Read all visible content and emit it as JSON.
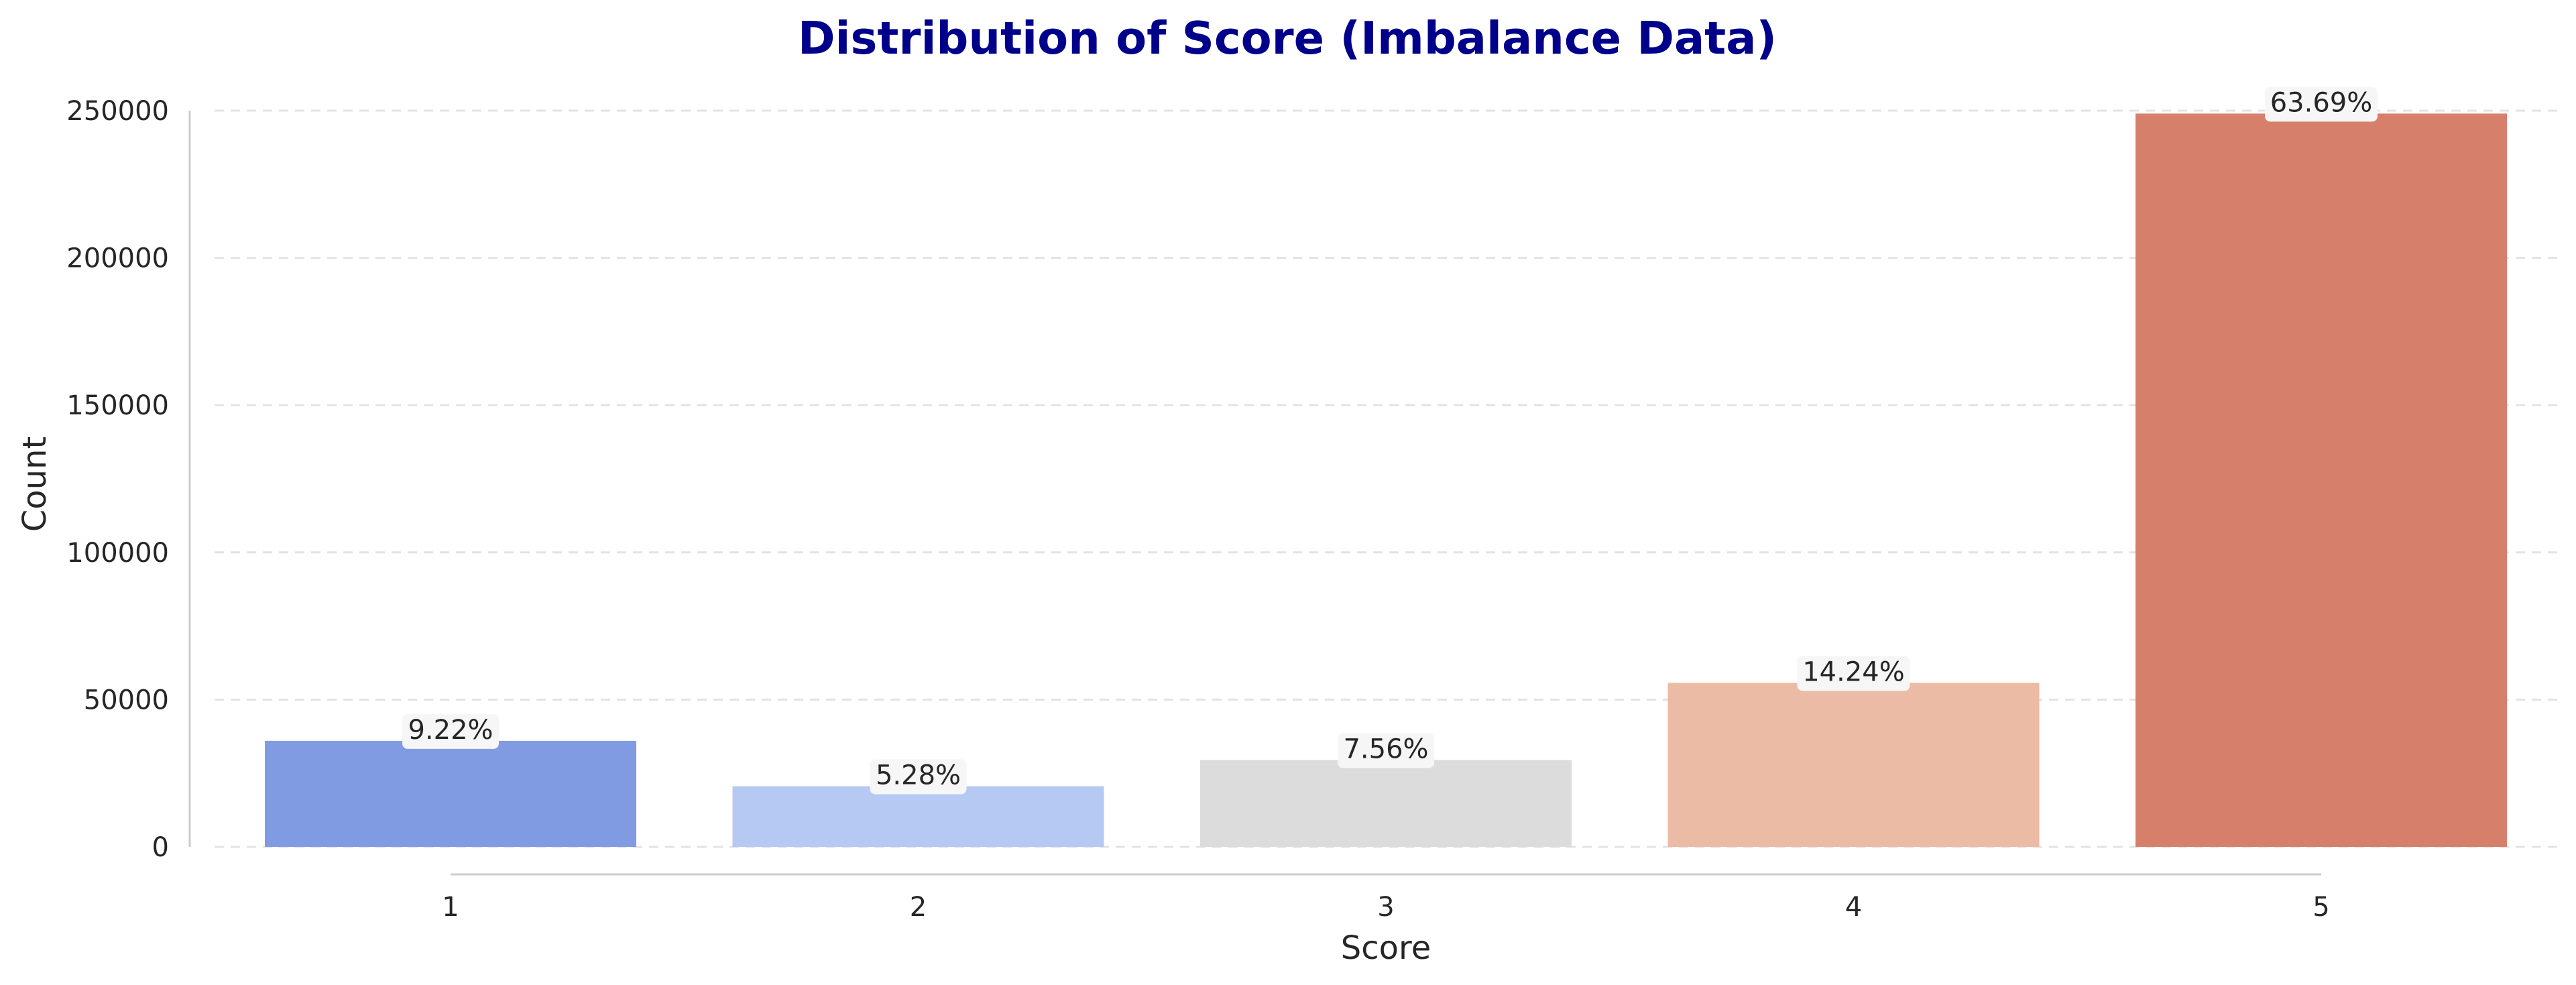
{
  "chart_data": {
    "type": "bar",
    "title": "Distribution of Score (Imbalance Data)",
    "xlabel": "Score",
    "ylabel": "Count",
    "categories": [
      "1",
      "2",
      "3",
      "4",
      "5"
    ],
    "values": [
      36000,
      20600,
      29500,
      55700,
      249000
    ],
    "data_labels": [
      "9.22%",
      "5.28%",
      "7.56%",
      "14.24%",
      "63.69%"
    ],
    "yticks": [
      0,
      50000,
      100000,
      150000,
      200000,
      250000
    ],
    "ytick_labels": [
      "0",
      "50000",
      "100000",
      "150000",
      "200000",
      "250000"
    ],
    "ylim": [
      0,
      250000
    ],
    "grid": "horizontal dashed",
    "colors": [
      "#819be3",
      "#b5c9f2",
      "#dcdcdc",
      "#ecbba5",
      "#d6806c"
    ],
    "title_color": "#00008b"
  }
}
